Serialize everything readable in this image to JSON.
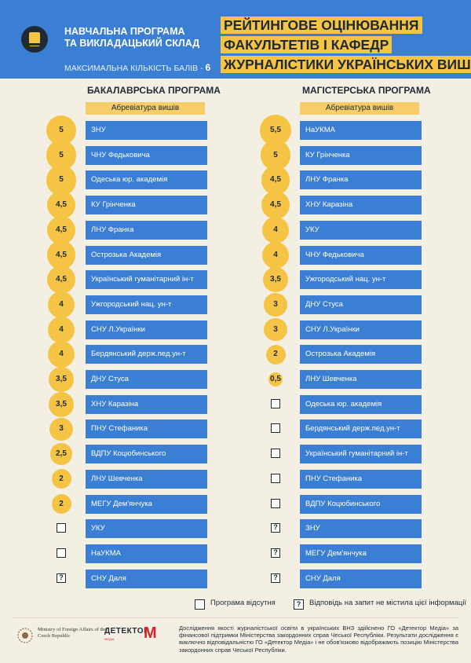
{
  "header": {
    "title_lines": [
      "НАВЧАЛЬНА ПРОГРАМА",
      "ТА ВИКЛАДАЦЬКИЙ СКЛАД"
    ],
    "max_label": "МАКСИМАЛЬНА КІЛЬКІСТЬ БАЛІВ - ",
    "max_value": "6",
    "icon": "book-icon"
  },
  "main_title": [
    "РЕЙТИНГОВЕ ОЦІНЮВАННЯ",
    "ФАКУЛЬТЕТІВ І КАФЕДР",
    "ЖУРНАЛІСТИКИ УКРАЇНСЬКИХ ВИШІВ"
  ],
  "bachelor": {
    "title": "БАКАЛАВРСЬКА ПРОГРАМА",
    "abbr_label": "Абревіатура вишів",
    "rows": [
      {
        "score": "5",
        "value": 5,
        "name": "ЗНУ"
      },
      {
        "score": "5",
        "value": 5,
        "name": "ЧНУ Федьковича"
      },
      {
        "score": "5",
        "value": 5,
        "name": "Одеська юр. академія"
      },
      {
        "score": "4,5",
        "value": 4.5,
        "name": "КУ Грінченка"
      },
      {
        "score": "4,5",
        "value": 4.5,
        "name": "ЛНУ Франка"
      },
      {
        "score": "4,5",
        "value": 4.5,
        "name": "Острозька Академія"
      },
      {
        "score": "4,5",
        "value": 4.5,
        "name": "Український гуманітарний ін-т"
      },
      {
        "score": "4",
        "value": 4,
        "name": "Ужгородський нац. ун-т"
      },
      {
        "score": "4",
        "value": 4,
        "name": "СНУ Л.Українки"
      },
      {
        "score": "4",
        "value": 4,
        "name": "Бердянський держ.пед.ун-т"
      },
      {
        "score": "3,5",
        "value": 3.5,
        "name": "ДНУ Стуса"
      },
      {
        "score": "3,5",
        "value": 3.5,
        "name": "ХНУ Каразіна"
      },
      {
        "score": "3",
        "value": 3,
        "name": "ПНУ Стефаника"
      },
      {
        "score": "2,5",
        "value": 2.5,
        "name": "ВДПУ Коцюбинського"
      },
      {
        "score": "2",
        "value": 2,
        "name": "ЛНУ Шевченка"
      },
      {
        "score": "2",
        "value": 2,
        "name": "МЕГУ Дем'янчука"
      },
      {
        "score": "",
        "status": "absent",
        "name": "УКУ"
      },
      {
        "score": "",
        "status": "absent",
        "name": "НаУКМА"
      },
      {
        "score": "?",
        "status": "no-info",
        "name": "СНУ Даля"
      }
    ]
  },
  "master": {
    "title": "МАГІСТЕРСЬКА ПРОГРАМА",
    "abbr_label": "Абревіатура вишів",
    "rows": [
      {
        "score": "5,5",
        "value": 5.5,
        "name": "НаУКМА"
      },
      {
        "score": "5",
        "value": 5,
        "name": "КУ Грінченка"
      },
      {
        "score": "4,5",
        "value": 4.5,
        "name": "ЛНУ Франка"
      },
      {
        "score": "4,5",
        "value": 4.5,
        "name": "ХНУ Каразіна"
      },
      {
        "score": "4",
        "value": 4,
        "name": "УКУ"
      },
      {
        "score": "4",
        "value": 4,
        "name": "ЧНУ Федьковича"
      },
      {
        "score": "3,5",
        "value": 3.5,
        "name": "Ужгородський нац. ун-т"
      },
      {
        "score": "3",
        "value": 3,
        "name": "ДНУ Стуса"
      },
      {
        "score": "3",
        "value": 3,
        "name": "СНУ Л.Українки"
      },
      {
        "score": "2",
        "value": 2,
        "name": "Острозька Академія"
      },
      {
        "score": "0,5",
        "value": 0.5,
        "name": "ЛНУ Шевченка"
      },
      {
        "score": "",
        "status": "absent",
        "name": "Одеська юр. академія"
      },
      {
        "score": "",
        "status": "absent",
        "name": "Бердянський держ.пед.ун-т"
      },
      {
        "score": "",
        "status": "absent",
        "name": "Український гуманітарний ін-т"
      },
      {
        "score": "",
        "status": "absent",
        "name": "ПНУ Стефаника"
      },
      {
        "score": "",
        "status": "absent",
        "name": "ВДПУ Коцюбинського"
      },
      {
        "score": "?",
        "status": "no-info",
        "name": "ЗНУ"
      },
      {
        "score": "?",
        "status": "no-info",
        "name": "МЕГУ Дем'янчука"
      },
      {
        "score": "?",
        "status": "no-info",
        "name": "СНУ Даля"
      }
    ]
  },
  "legend": {
    "absent": "Програма відсутня",
    "no_info": "Відповідь на запит не містила цієї інформації",
    "no_info_mark": "?"
  },
  "footer": {
    "ministry": "Ministry of Foreign Affairs of the Czech Republic",
    "detector": "ДЕТЕКТОР",
    "detector_mark": "М",
    "detector_sub": "МЕДІА",
    "note": "Дослідження якості журналістської освіти в українських ВНЗ здійснено ГО «Детектор Медіа» за фінансової підтримки Міністерства закордонних справ Чеської Республіки. Результати дослідження є виключно відповідальністю ГО «Детектор Медіа» і не обов'язково відображають позицію Міністерства закордонних справ Чеської Республіки."
  },
  "colors": {
    "blue": "#3b7fd4",
    "yellow": "#f5c445",
    "bg": "#f3f0e3",
    "dark": "#1f2a36"
  }
}
